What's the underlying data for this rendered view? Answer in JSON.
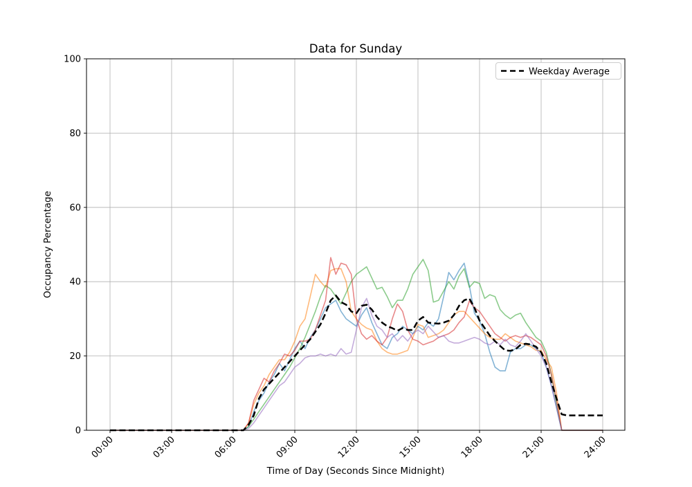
{
  "figure": {
    "background": "#ffffff"
  },
  "chart_data": {
    "type": "line",
    "title": "Data for Sunday",
    "xlabel": "Time of Day (Seconds Since Midnight)",
    "ylabel": "Occupancy Percentage",
    "ylim": [
      0,
      100
    ],
    "grid": true,
    "grid_color": "#b0b0b0",
    "spine_color": "#000000",
    "x_tick_seconds": [
      0,
      10800,
      21600,
      32400,
      43200,
      54000,
      64800,
      75600,
      86400
    ],
    "x_tick_labels": [
      "00:00",
      "03:00",
      "06:00",
      "09:00",
      "12:00",
      "15:00",
      "18:00",
      "21:00",
      "24:00"
    ],
    "y_ticks": [
      0,
      20,
      40,
      60,
      80,
      100
    ],
    "x_start_seconds": 0,
    "sample_interval_seconds": 900,
    "legend": {
      "position": "upper right",
      "entries": [
        {
          "label": "Weekday Average",
          "color": "#000000",
          "style": "dashed"
        }
      ]
    },
    "series": [
      {
        "name": "sunday-series-1",
        "color": "#1f77b4",
        "opacity": 0.55,
        "style": "solid",
        "width": 1.6,
        "values": [
          0,
          0,
          0,
          0,
          0,
          0,
          0,
          0,
          0,
          0,
          0,
          0,
          0,
          0,
          0,
          0,
          0,
          0,
          0,
          0,
          0,
          0,
          0,
          0,
          0,
          0,
          0,
          1,
          5,
          8,
          10,
          13,
          15,
          18,
          16,
          19,
          22,
          24,
          22,
          25,
          27,
          30,
          33,
          34,
          35,
          32,
          30,
          29,
          28,
          31,
          33,
          29,
          26,
          23,
          22,
          25,
          26,
          28,
          27,
          26,
          28,
          27,
          29,
          28,
          30,
          36,
          42.5,
          40.5,
          43,
          45,
          39,
          31.5,
          29.5,
          26,
          21,
          17,
          16,
          16,
          21,
          22,
          22,
          23,
          23,
          22,
          21,
          17,
          12,
          6,
          0,
          0,
          0,
          0,
          0,
          0,
          0,
          0,
          0
        ]
      },
      {
        "name": "sunday-series-2",
        "color": "#ff7f0e",
        "opacity": 0.55,
        "style": "solid",
        "width": 1.6,
        "values": [
          0,
          0,
          0,
          0,
          0,
          0,
          0,
          0,
          0,
          0,
          0,
          0,
          0,
          0,
          0,
          0,
          0,
          0,
          0,
          0,
          0,
          0,
          0,
          0,
          0,
          0,
          0,
          2,
          7,
          10,
          12,
          15,
          17,
          19,
          19,
          21,
          24,
          28,
          30,
          36,
          42,
          40,
          38.5,
          43,
          43.5,
          43.5,
          40,
          32,
          30,
          28.5,
          27.5,
          27,
          24,
          22,
          21,
          20.5,
          20.5,
          21,
          21.5,
          25,
          28.5,
          28,
          25,
          25.5,
          26,
          27,
          29,
          31,
          32,
          32,
          30.5,
          29,
          27.5,
          26,
          25,
          24.5,
          24.5,
          26,
          25,
          24,
          23.5,
          23,
          22.5,
          21.5,
          21.5,
          19,
          17,
          10,
          0,
          0,
          0,
          0,
          0,
          0,
          0,
          0,
          0
        ]
      },
      {
        "name": "sunday-series-3",
        "color": "#2ca02c",
        "opacity": 0.55,
        "style": "solid",
        "width": 1.6,
        "values": [
          0,
          0,
          0,
          0,
          0,
          0,
          0,
          0,
          0,
          0,
          0,
          0,
          0,
          0,
          0,
          0,
          0,
          0,
          0,
          0,
          0,
          0,
          0,
          0,
          0,
          0,
          0,
          1,
          3,
          5,
          7,
          9,
          11,
          13,
          15,
          17,
          19.5,
          22,
          25,
          28.5,
          32,
          36,
          39,
          38,
          36,
          34,
          37,
          40,
          42,
          43,
          44,
          41,
          38,
          38.5,
          36,
          33,
          35,
          35,
          38,
          42,
          44,
          46,
          43,
          34.5,
          35,
          37.5,
          40,
          38,
          41.5,
          43.5,
          38.5,
          40,
          39.5,
          35.5,
          36.5,
          36,
          32.5,
          31,
          30,
          31,
          31.5,
          29,
          27,
          25,
          24,
          21,
          15,
          7,
          0,
          0,
          0,
          0,
          0,
          0,
          0,
          0,
          0
        ]
      },
      {
        "name": "sunday-series-4",
        "color": "#d62728",
        "opacity": 0.55,
        "style": "solid",
        "width": 1.6,
        "values": [
          0,
          0,
          0,
          0,
          0,
          0,
          0,
          0,
          0,
          0,
          0,
          0,
          0,
          0,
          0,
          0,
          0,
          0,
          0,
          0,
          0,
          0,
          0,
          0,
          0,
          0,
          0,
          2,
          8,
          11,
          14,
          13,
          16,
          18,
          20.5,
          20,
          21.5,
          24,
          24,
          24.5,
          27,
          31,
          35,
          46.5,
          42,
          45,
          44.5,
          42,
          30,
          26,
          24.5,
          25.5,
          24,
          23,
          25,
          30,
          34,
          32,
          27,
          24.5,
          24,
          23,
          23.5,
          24,
          25,
          25.5,
          26,
          27,
          29,
          30.5,
          34.8,
          33,
          32,
          30,
          28,
          26,
          25,
          24,
          25,
          25.5,
          25,
          25.5,
          25,
          24,
          23,
          20,
          15,
          8,
          0,
          0,
          0,
          0,
          0,
          0,
          0,
          0,
          0
        ]
      },
      {
        "name": "sunday-series-5",
        "color": "#9467bd",
        "opacity": 0.55,
        "style": "solid",
        "width": 1.6,
        "values": [
          0,
          0,
          0,
          0,
          0,
          0,
          0,
          0,
          0,
          0,
          0,
          0,
          0,
          0,
          0,
          0,
          0,
          0,
          0,
          0,
          0,
          0,
          0,
          0,
          0,
          0,
          0,
          0.5,
          2,
          4,
          6,
          8,
          10,
          12,
          13,
          15,
          17,
          18,
          19.5,
          20,
          20,
          20.5,
          20,
          20.5,
          20,
          22,
          20.5,
          21,
          27,
          33,
          35.5,
          31,
          28,
          27,
          25,
          26,
          24,
          25.5,
          24,
          26,
          27,
          26,
          28,
          26.5,
          25,
          25.5,
          24,
          23.5,
          23.5,
          24,
          24.5,
          25,
          24.5,
          23.5,
          23,
          24,
          23,
          24.5,
          23,
          22.5,
          24,
          26,
          24,
          22,
          20,
          17,
          12,
          6,
          0,
          0,
          0,
          0,
          0,
          0,
          0,
          0,
          0
        ]
      },
      {
        "name": "weekday-average",
        "label": "Weekday Average",
        "color": "#000000",
        "opacity": 1,
        "style": "dashed",
        "width": 2.5,
        "values": [
          0,
          0,
          0,
          0,
          0,
          0,
          0,
          0,
          0,
          0,
          0,
          0,
          0,
          0,
          0,
          0,
          0,
          0,
          0,
          0,
          0,
          0,
          0,
          0,
          0,
          0,
          0,
          1.5,
          4,
          8.5,
          11,
          12.5,
          14,
          15.5,
          17,
          18.5,
          20,
          21.5,
          23,
          24.5,
          26.5,
          28.5,
          31.5,
          35,
          36.3,
          34.5,
          33.8,
          32,
          31.5,
          33.5,
          33.8,
          32.5,
          30.5,
          29,
          28,
          27.5,
          26.8,
          27.5,
          27,
          27,
          29.5,
          30.5,
          29,
          28.8,
          28.7,
          29,
          29.5,
          31,
          33.5,
          35,
          35.5,
          33,
          29.5,
          27.5,
          25.5,
          24,
          22.7,
          21.5,
          21.4,
          21.8,
          23,
          23.3,
          23.1,
          22.5,
          21,
          18,
          13,
          8.5,
          4.3,
          4,
          4,
          4,
          4,
          4,
          4,
          4,
          4
        ]
      }
    ]
  }
}
